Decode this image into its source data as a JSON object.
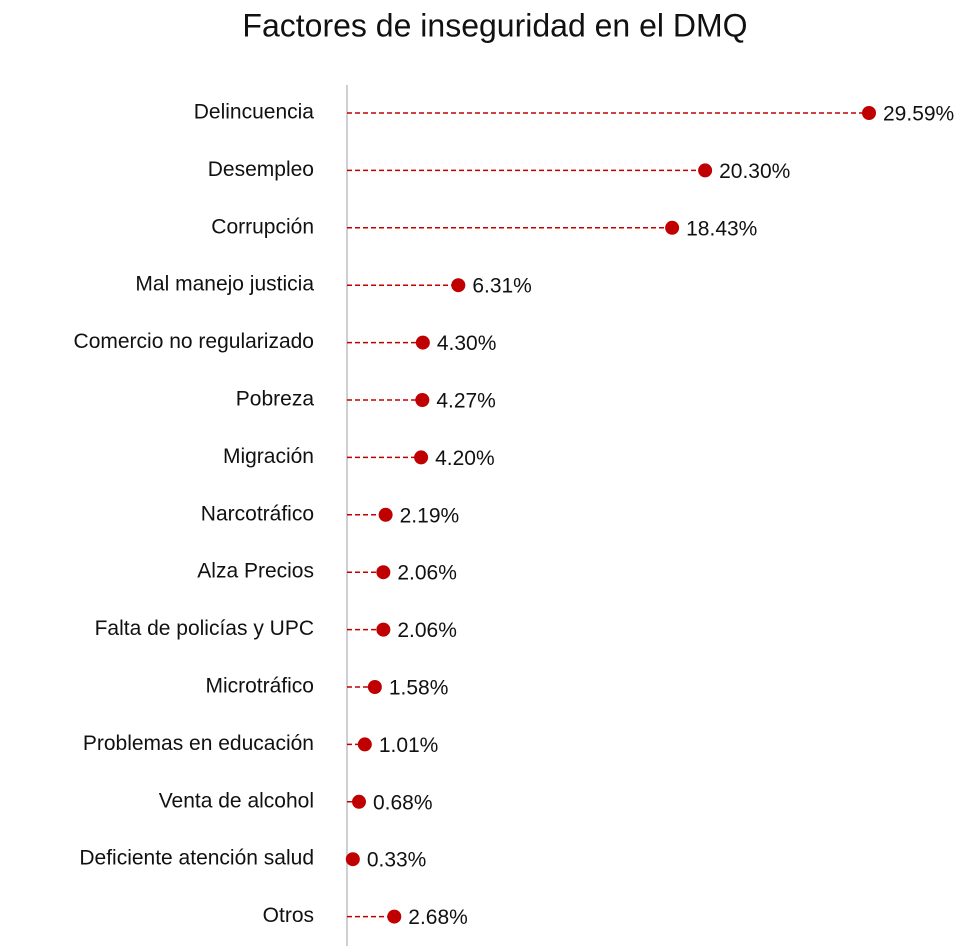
{
  "chart_data": {
    "type": "lollipop",
    "title": "Factores de inseguridad en el DMQ",
    "categories": [
      "Delincuencia",
      "Desempleo",
      "Corrupción",
      "Mal manejo justicia",
      "Comercio no regularizado",
      "Pobreza",
      "Migración",
      "Narcotráfico",
      "Alza Precios",
      "Falta de policías y UPC",
      "Microtráfico",
      "Problemas en educación",
      "Venta de alcohol",
      "Deficiente atención salud",
      "Otros"
    ],
    "values": [
      29.59,
      20.3,
      18.43,
      6.31,
      4.3,
      4.27,
      4.2,
      2.19,
      2.06,
      2.06,
      1.58,
      1.01,
      0.68,
      0.33,
      2.68
    ],
    "value_labels": [
      "29.59%",
      "20.30%",
      "18.43%",
      "6.31%",
      "4.30%",
      "4.27%",
      "4.20%",
      "2.19%",
      "2.06%",
      "2.06%",
      "1.58%",
      "1.01%",
      "0.68%",
      "0.33%",
      "2.68%"
    ],
    "color": "#c00000"
  }
}
